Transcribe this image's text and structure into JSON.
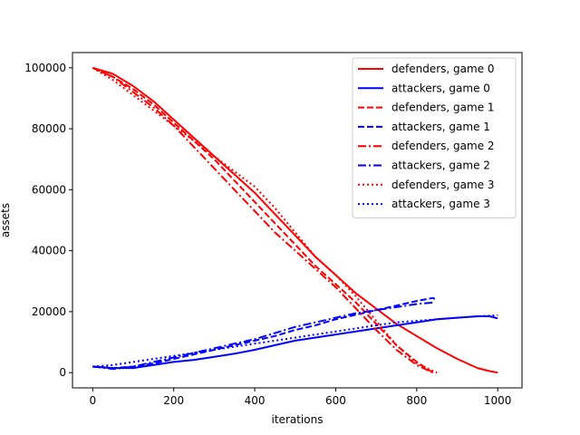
{
  "chart_data": {
    "type": "line",
    "title": "",
    "xlabel": "iterations",
    "ylabel": "assets",
    "xlim": [
      -50,
      1060
    ],
    "ylim": [
      -5000,
      105000
    ],
    "xticks": [
      0,
      200,
      400,
      600,
      800,
      1000
    ],
    "yticks": [
      0,
      20000,
      40000,
      60000,
      80000,
      100000
    ],
    "xtick_labels": [
      "0",
      "200",
      "400",
      "600",
      "800",
      "1000"
    ],
    "ytick_labels": [
      "0",
      "20000",
      "40000",
      "60000",
      "80000",
      "100000"
    ],
    "grid": false,
    "legend_position": "top-right",
    "series": [
      {
        "name": "defenders, game 0",
        "color": "#ff0000",
        "dash": "solid",
        "x": [
          0,
          50,
          100,
          150,
          200,
          250,
          300,
          350,
          400,
          450,
          500,
          550,
          600,
          650,
          700,
          750,
          800,
          850,
          900,
          950,
          980,
          1000
        ],
        "y": [
          100000,
          98000,
          94000,
          89000,
          83000,
          77000,
          71000,
          65000,
          59000,
          52000,
          45000,
          38000,
          32000,
          26000,
          21000,
          16000,
          12000,
          8000,
          4500,
          1500,
          500,
          0
        ]
      },
      {
        "name": "attackers, game 0",
        "color": "#0000ff",
        "dash": "solid",
        "x": [
          0,
          50,
          100,
          150,
          200,
          250,
          300,
          350,
          400,
          450,
          500,
          550,
          600,
          650,
          700,
          750,
          800,
          850,
          900,
          950,
          980,
          1000
        ],
        "y": [
          2000,
          1500,
          1500,
          2500,
          3500,
          4200,
          5200,
          6200,
          7500,
          9000,
          10500,
          11500,
          12500,
          13500,
          14500,
          15500,
          16500,
          17500,
          18000,
          18500,
          18500,
          17800
        ]
      },
      {
        "name": "defenders, game 1",
        "color": "#ff0000",
        "dash": "dashed",
        "x": [
          0,
          50,
          100,
          150,
          200,
          250,
          300,
          350,
          400,
          450,
          500,
          550,
          600,
          650,
          700,
          750,
          800,
          840
        ],
        "y": [
          100000,
          97000,
          93000,
          88000,
          82000,
          76000,
          70000,
          63000,
          56000,
          49000,
          42000,
          35000,
          29000,
          23000,
          16000,
          9000,
          3500,
          0
        ]
      },
      {
        "name": "attackers, game 1",
        "color": "#0000ff",
        "dash": "dashed",
        "x": [
          0,
          50,
          100,
          150,
          200,
          250,
          300,
          350,
          400,
          450,
          500,
          550,
          600,
          650,
          700,
          750,
          800,
          840,
          845
        ],
        "y": [
          2000,
          1500,
          2000,
          3000,
          4500,
          6000,
          7500,
          9000,
          10500,
          12000,
          14000,
          15500,
          17500,
          19000,
          20500,
          22000,
          23500,
          24500,
          24200
        ]
      },
      {
        "name": "defenders, game 2",
        "color": "#ff0000",
        "dash": "dashdot",
        "x": [
          0,
          50,
          100,
          150,
          200,
          250,
          300,
          350,
          400,
          450,
          500,
          550,
          600,
          650,
          700,
          750,
          800,
          840
        ],
        "y": [
          100000,
          97000,
          92000,
          87000,
          81000,
          74000,
          67000,
          60000,
          53000,
          46000,
          40000,
          34000,
          28000,
          21000,
          14000,
          7500,
          2500,
          0
        ]
      },
      {
        "name": "attackers, game 2",
        "color": "#0000ff",
        "dash": "dashdot",
        "x": [
          0,
          50,
          100,
          150,
          200,
          250,
          300,
          350,
          400,
          450,
          500,
          550,
          600,
          650,
          700,
          750,
          800,
          840
        ],
        "y": [
          2000,
          1200,
          2000,
          3500,
          5000,
          6500,
          8000,
          9500,
          11000,
          13000,
          15000,
          16500,
          18000,
          19500,
          20500,
          21500,
          22500,
          23000
        ]
      },
      {
        "name": "defenders, game 3",
        "color": "#ff0000",
        "dash": "dotted",
        "x": [
          0,
          50,
          100,
          150,
          200,
          250,
          300,
          350,
          400,
          450,
          500,
          550,
          600,
          650,
          700,
          750,
          800,
          850
        ],
        "y": [
          100000,
          96000,
          91000,
          86000,
          81000,
          76000,
          71000,
          66000,
          61000,
          54000,
          46000,
          38000,
          32000,
          25000,
          17000,
          9000,
          3000,
          0
        ]
      },
      {
        "name": "attackers, game 3",
        "color": "#0000ff",
        "dash": "dotted",
        "x": [
          0,
          50,
          100,
          150,
          200,
          250,
          300,
          350,
          400,
          450,
          500,
          550,
          600,
          650,
          700,
          750,
          800,
          850,
          900,
          950,
          1000
        ],
        "y": [
          2000,
          2500,
          3500,
          4500,
          5500,
          6500,
          7500,
          8500,
          9500,
          10500,
          11500,
          12500,
          13500,
          14500,
          15500,
          16500,
          17000,
          17500,
          18000,
          18500,
          18800
        ]
      }
    ]
  }
}
